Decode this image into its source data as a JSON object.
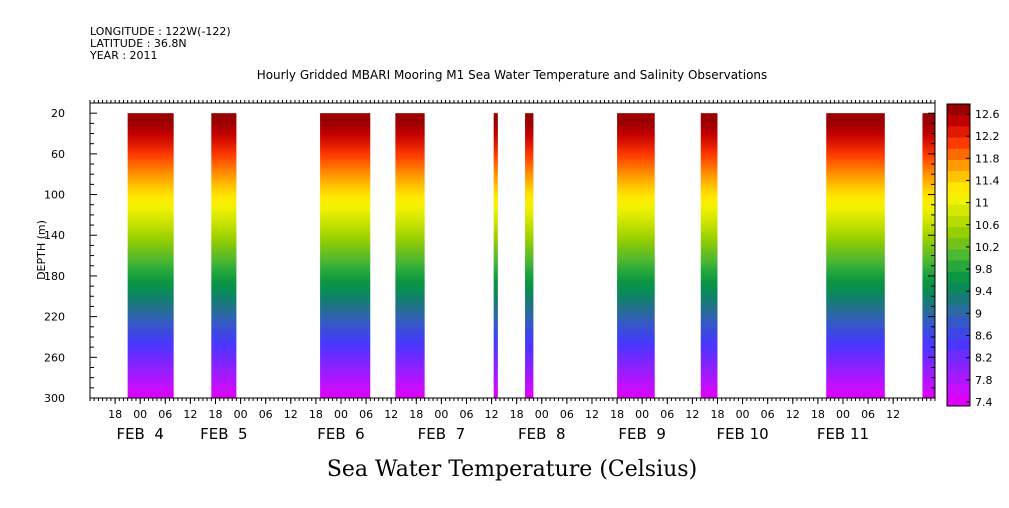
{
  "header": {
    "longitude": "LONGITUDE : 122W(-122)",
    "latitude": "LATITUDE : 36.8N",
    "year": "YEAR : 2011"
  },
  "chart_data": {
    "type": "heatmap",
    "title": "Hourly Gridded MBARI Mooring M1 Sea Water Temperature and Salinity Observations",
    "xlabel": "",
    "ylabel": "DEPTH (m)",
    "ylim": [
      300,
      10
    ],
    "y_inverted": true,
    "yticks": [
      20,
      60,
      100,
      140,
      180,
      220,
      260,
      300
    ],
    "x_unit": "hours since 2011-02-03 12:00",
    "xlim": [
      0,
      202
    ],
    "x_hour_ticks": [
      "18",
      "00",
      "06",
      "12",
      "18",
      "00",
      "06",
      "12",
      "18",
      "00",
      "06",
      "12",
      "18",
      "00",
      "06",
      "12",
      "18",
      "00",
      "06",
      "12",
      "18",
      "00",
      "06",
      "12",
      "18",
      "00",
      "06",
      "12",
      "18",
      "00",
      "06",
      "12"
    ],
    "x_hour_tick_times": [
      6,
      12,
      18,
      24,
      30,
      36,
      42,
      48,
      54,
      60,
      66,
      72,
      78,
      84,
      90,
      96,
      102,
      108,
      114,
      120,
      126,
      132,
      138,
      144,
      150,
      156,
      162,
      168,
      174,
      180,
      186,
      192
    ],
    "x_date_labels": [
      {
        "label": "FEB  4",
        "t": 12
      },
      {
        "label": "FEB  5",
        "t": 32
      },
      {
        "label": "FEB  6",
        "t": 60
      },
      {
        "label": "FEB  7",
        "t": 84
      },
      {
        "label": "FEB  8",
        "t": 108
      },
      {
        "label": "FEB  9",
        "t": 132
      },
      {
        "label": "FEB 10",
        "t": 156
      },
      {
        "label": "FEB 11",
        "t": 180
      }
    ],
    "data_blocks": [
      {
        "t0": 9,
        "t1": 20
      },
      {
        "t0": 29,
        "t1": 35
      },
      {
        "t0": 55,
        "t1": 67
      },
      {
        "t0": 73,
        "t1": 80
      },
      {
        "t0": 96.5,
        "t1": 97.5
      },
      {
        "t0": 104,
        "t1": 106
      },
      {
        "t0": 126,
        "t1": 135
      },
      {
        "t0": 146,
        "t1": 150
      },
      {
        "t0": 176,
        "t1": 190
      },
      {
        "t0": 199,
        "t1": 202
      }
    ],
    "profile_note": "temperature decreases from about 12.6 near 20 m to about 7.4 at 300 m",
    "colorbar": {
      "levels": [
        "12.6",
        "12.2",
        "11.8",
        "11.4",
        "11",
        "10.6",
        "10.2",
        "9.8",
        "9.4",
        "9",
        "8.6",
        "8.2",
        "7.8",
        "7.4"
      ],
      "colors": [
        "#9b0000",
        "#c00000",
        "#e01a00",
        "#ff3a00",
        "#ff6a00",
        "#ff9a00",
        "#ffc400",
        "#ffe800",
        "#f2f200",
        "#d6e800",
        "#b7dc00",
        "#96cf00",
        "#73c21a",
        "#4db832",
        "#27a83c",
        "#0b9642",
        "#0a8a5a",
        "#19787a",
        "#2a6aa0",
        "#3458c8",
        "#3e46e6",
        "#4a36ff",
        "#6a2cff",
        "#8a22ff",
        "#a818ff",
        "#c60eff",
        "#dd00f5"
      ]
    },
    "footer_label": "Sea Water Temperature (Celsius)"
  }
}
